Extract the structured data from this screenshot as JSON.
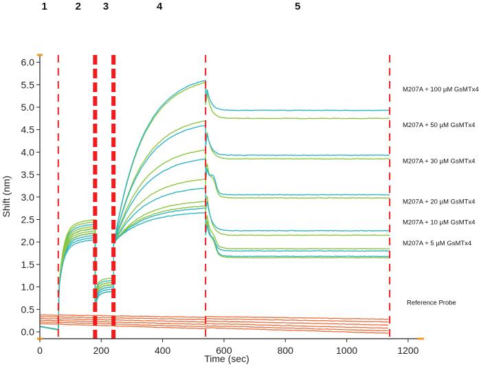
{
  "chart_data": {
    "type": "line",
    "xlabel": "Time (sec)",
    "ylabel": "Shift (nm)",
    "xlim": [
      0,
      1250
    ],
    "ylim": [
      -0.1,
      6.1
    ],
    "xticks": [
      "0",
      "200",
      "400",
      "600",
      "800",
      "1000",
      "1200"
    ],
    "xtick_values": [
      0,
      200,
      400,
      600,
      800,
      1000,
      1200
    ],
    "yticks": [
      "0.0",
      "0.5",
      "1.0",
      "1.5",
      "2.0",
      "2.5",
      "3.0",
      "3.5",
      "4.0",
      "4.5",
      "5.0",
      "5.5",
      "6.0"
    ],
    "ytick_values": [
      0,
      0.5,
      1.0,
      1.5,
      2.0,
      2.5,
      3.0,
      3.5,
      4.0,
      4.5,
      5.0,
      5.5,
      6.0
    ],
    "step_boundaries": [
      {
        "x": 60,
        "style": "thin"
      },
      {
        "x": 180,
        "style": "thick"
      },
      {
        "x": 240,
        "style": "thick"
      },
      {
        "x": 540,
        "style": "thin"
      },
      {
        "x": 1140,
        "style": "thin"
      }
    ],
    "steps": [
      {
        "label": "1",
        "x": 15
      },
      {
        "label": "2",
        "x": 125
      },
      {
        "label": "3",
        "x": 215
      },
      {
        "label": "4",
        "x": 390
      },
      {
        "label": "5",
        "x": 840
      }
    ],
    "annotations": [
      {
        "text": "M207A + 100 µM GsMTx4",
        "y": 5.4
      },
      {
        "text": "M207A + 50 µM GsMTx4",
        "y": 4.6
      },
      {
        "text": "M207A + 30 µM GsMTx4",
        "y": 3.8
      },
      {
        "text": "M207A + 20 µM GsMTx4",
        "y": 2.9
      },
      {
        "text": "M207A + 10 µM GsMTx4",
        "y": 2.44
      },
      {
        "text": "M207A + 5 µM GsMTx4",
        "y": 1.97
      },
      {
        "text": "Reference Probe",
        "y": 0.65
      }
    ],
    "colors": {
      "green": "#8dc63f",
      "teal": "#2fb6c4",
      "reference": "#f26b3a",
      "boundary": "#ee1c1c",
      "axis_tick": "#f7941d"
    },
    "series": [
      {
        "color": "green",
        "load": 2.4,
        "dip": 0.85,
        "assoc_end": 5.55,
        "dissoc_end": 4.75,
        "spike": 0
      },
      {
        "color": "teal",
        "load": 2.3,
        "dip": 0.8,
        "assoc_end": 5.6,
        "dissoc_end": 4.93,
        "spike": 0
      },
      {
        "color": "green",
        "load": 2.35,
        "dip": 0.9,
        "assoc_end": 4.7,
        "dissoc_end": 3.85,
        "spike": 0
      },
      {
        "color": "teal",
        "load": 2.2,
        "dip": 0.95,
        "assoc_end": 4.6,
        "dissoc_end": 3.93,
        "spike": 0
      },
      {
        "color": "green",
        "load": 2.25,
        "dip": 1.0,
        "assoc_end": 4.05,
        "dissoc_end": 2.98,
        "spike": 0.25
      },
      {
        "color": "teal",
        "load": 2.1,
        "dip": 0.85,
        "assoc_end": 3.85,
        "dissoc_end": 3.05,
        "spike": 0.3
      },
      {
        "color": "green",
        "load": 2.2,
        "dip": 0.7,
        "assoc_end": 3.4,
        "dissoc_end": 2.15,
        "spike": 0
      },
      {
        "color": "teal",
        "load": 2.05,
        "dip": 0.75,
        "assoc_end": 3.2,
        "dissoc_end": 2.25,
        "spike": 0
      },
      {
        "color": "green",
        "load": 2.15,
        "dip": 0.9,
        "assoc_end": 2.9,
        "dissoc_end": 1.85,
        "spike": 0.15
      },
      {
        "color": "teal",
        "load": 2.0,
        "dip": 0.8,
        "assoc_end": 2.75,
        "dissoc_end": 1.8,
        "spike": 0.1
      },
      {
        "color": "green",
        "load": 2.1,
        "dip": 0.85,
        "assoc_end": 2.8,
        "dissoc_end": 1.65,
        "spike": 0.2
      },
      {
        "color": "teal",
        "load": 1.95,
        "dip": 0.7,
        "assoc_end": 2.65,
        "dissoc_end": 1.68,
        "spike": 0.25
      }
    ],
    "reference_series": [
      {
        "start": 0.38,
        "end": 0.26
      },
      {
        "start": 0.34,
        "end": 0.2
      },
      {
        "start": 0.3,
        "end": 0.13
      },
      {
        "start": 0.26,
        "end": 0.06
      },
      {
        "start": 0.22,
        "end": 0.0
      },
      {
        "start": 0.18,
        "end": -0.05
      }
    ]
  }
}
